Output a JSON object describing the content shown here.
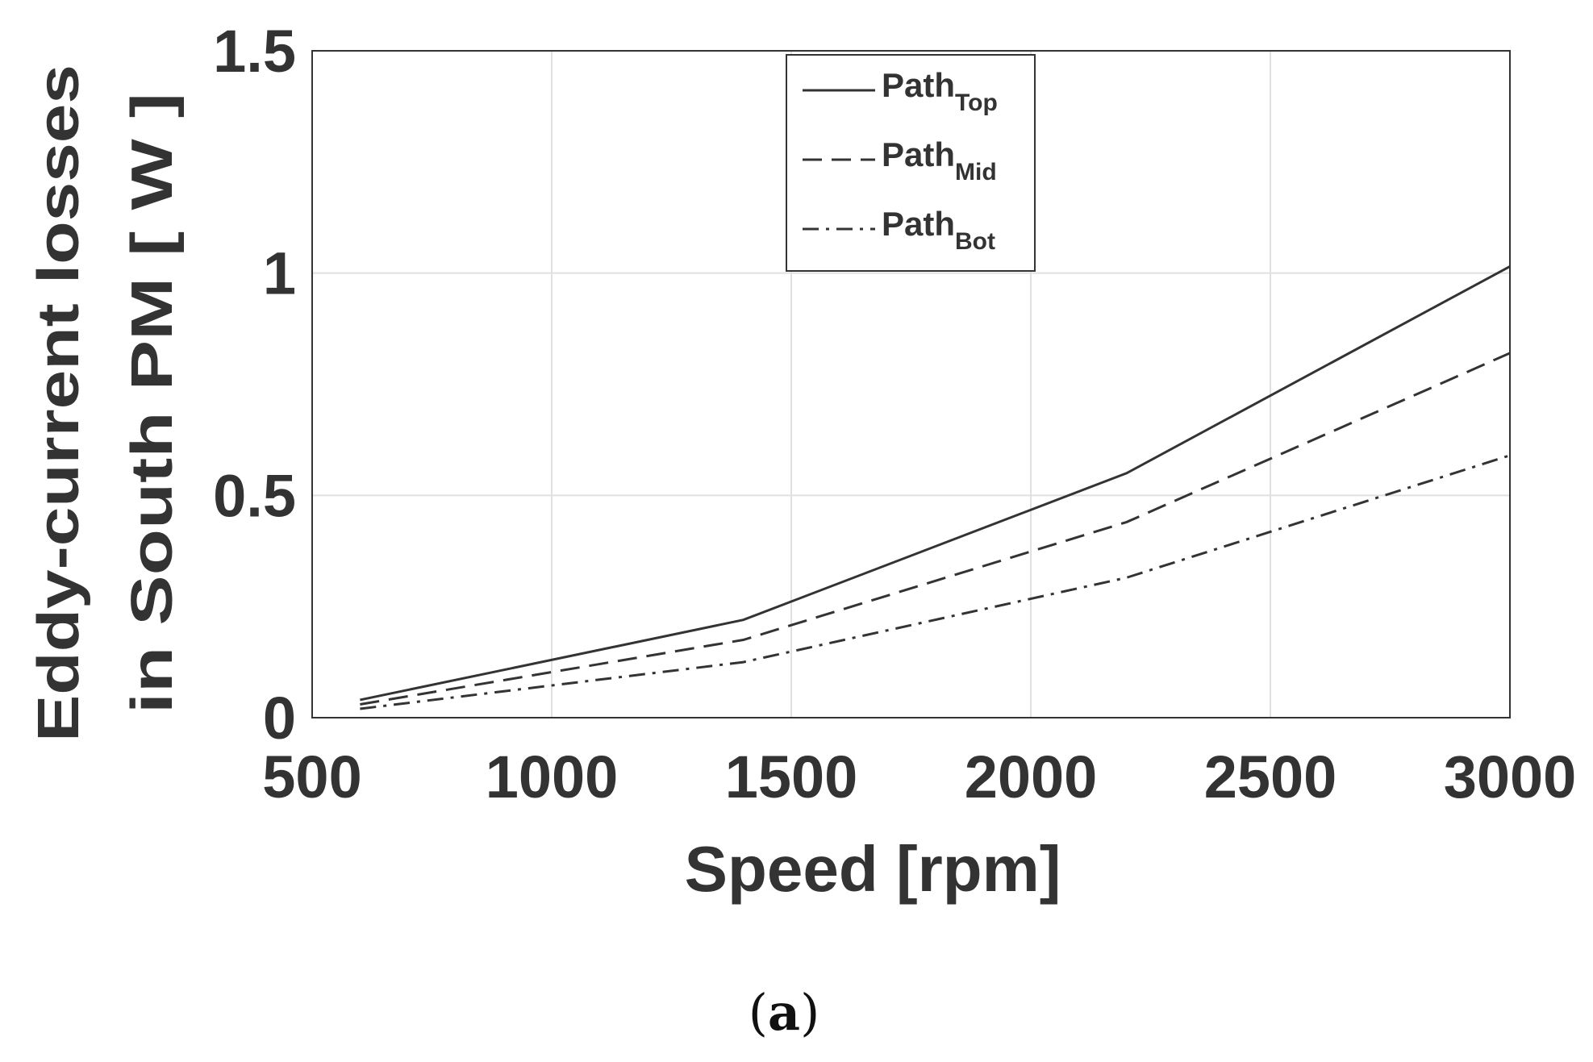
{
  "chart_data": {
    "type": "line",
    "title": "",
    "xlabel": "Speed [rpm]",
    "ylabel_lines": [
      "Eddy-current losses",
      "in South PM [ W ]"
    ],
    "xlim": [
      500,
      3000
    ],
    "ylim": [
      0,
      1.5
    ],
    "xticks": [
      500,
      1000,
      1500,
      2000,
      2500,
      3000
    ],
    "xtick_labels": [
      "500",
      "1000",
      "1500",
      "2000",
      "2500",
      "3000"
    ],
    "yticks": [
      0,
      0.5,
      1,
      1.5
    ],
    "ytick_labels": [
      "0",
      "0.5",
      "1",
      "1.5"
    ],
    "grid": true,
    "legend_position": "top-center",
    "x": [
      600,
      1400,
      2200,
      3000
    ],
    "series": [
      {
        "name": "Path",
        "subscript": "Top",
        "style": "solid",
        "values": [
          0.04,
          0.22,
          0.55,
          1.015
        ]
      },
      {
        "name": "Path",
        "subscript": "Mid",
        "style": "dashed",
        "values": [
          0.03,
          0.175,
          0.44,
          0.82
        ]
      },
      {
        "name": "Path",
        "subscript": "Bot",
        "style": "dashdot",
        "values": [
          0.02,
          0.125,
          0.315,
          0.59
        ]
      }
    ],
    "line_color": "#333333",
    "grid_color": "#e0e0e0"
  },
  "caption": {
    "open": "(",
    "label": "a",
    "close": ")"
  }
}
